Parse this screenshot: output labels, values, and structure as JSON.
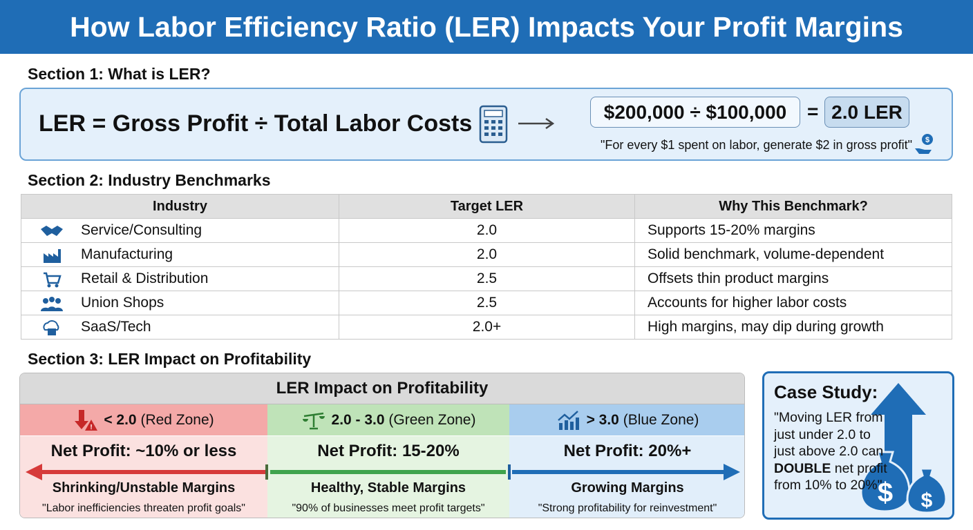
{
  "title": "How Labor Efficiency Ratio (LER) Impacts Your Profit Margins",
  "section1": {
    "heading": "Section 1: What is LER?",
    "formula": "LER = Gross Profit ÷ Total Labor Costs",
    "example": "$200,000 ÷ $100,000",
    "equals": "=",
    "result": "2.0 LER",
    "quote": "\"For every $1 spent on labor, generate $2 in gross profit\""
  },
  "section2": {
    "heading": "Section 2: Industry Benchmarks",
    "columns": [
      "Industry",
      "Target LER",
      "Why This Benchmark?"
    ],
    "rows": [
      {
        "icon": "handshake-icon",
        "industry": "Service/Consulting",
        "target": "2.0",
        "why": "Supports 15-20% margins"
      },
      {
        "icon": "factory-icon",
        "industry": "Manufacturing",
        "target": "2.0",
        "why": "Solid benchmark, volume-dependent"
      },
      {
        "icon": "cart-icon",
        "industry": "Retail & Distribution",
        "target": "2.5",
        "why": "Offsets thin product margins"
      },
      {
        "icon": "workers-icon",
        "industry": "Union Shops",
        "target": "2.5",
        "why": "Accounts for higher labor costs"
      },
      {
        "icon": "cloud-server-icon",
        "industry": "SaaS/Tech",
        "target": "2.0+",
        "why": "High margins, may dip during growth"
      }
    ]
  },
  "section3": {
    "heading": "Section 3: LER Impact on Profitability",
    "box_title": "LER Impact on Profitability",
    "zones": [
      {
        "range": "< 2.0",
        "label": "(Red Zone)",
        "net": "Net Profit: ~10% or less",
        "margins": "Shrinking/Unstable Margins",
        "quote": "\"Labor inefficiencies threaten profit goals\"",
        "color": "#d63a3a"
      },
      {
        "range": "2.0 - 3.0",
        "label": "(Green Zone)",
        "net": "Net Profit: 15-20%",
        "margins": "Healthy, Stable Margins",
        "quote": "\"90% of businesses meet profit targets\"",
        "color": "#3fa34d"
      },
      {
        "range": "> 3.0",
        "label": "(Blue Zone)",
        "net": "Net Profit: 20%+",
        "margins": "Growing Margins",
        "quote": "\"Strong profitability for reinvestment\"",
        "color": "#1f6db6"
      }
    ]
  },
  "case_study": {
    "title": "Case Study:",
    "quote_pre": "\"Moving LER from just under 2.0 to just above 2.0 can ",
    "quote_bold": "DOUBLE",
    "quote_post": " net profit from 10% to 20%\""
  },
  "colors": {
    "brand": "#1f6db6",
    "light_blue": "#e4f0fb",
    "red_zone": "#f4a9a8",
    "green_zone": "#bfe3b8",
    "blue_zone": "#a9cdee"
  }
}
